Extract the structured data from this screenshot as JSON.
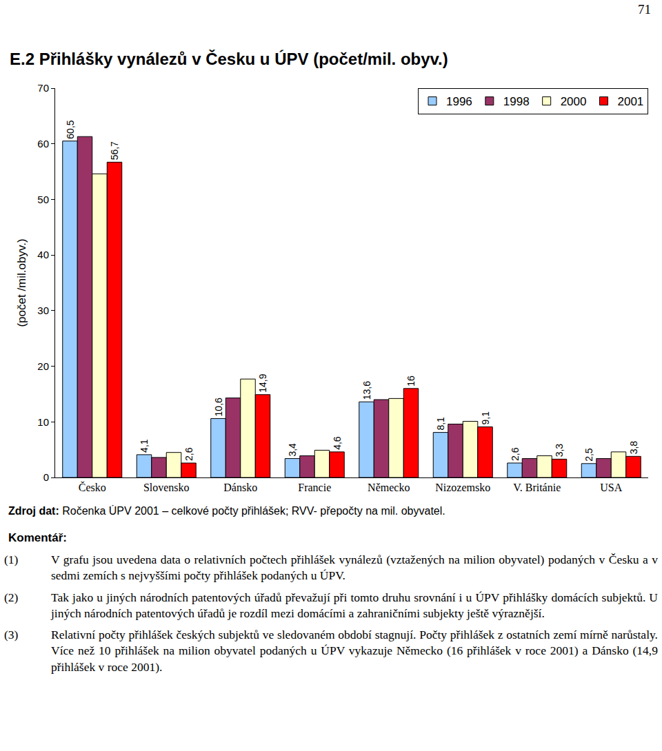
{
  "page_number": "71",
  "chart_data": {
    "type": "bar",
    "title": "E.2  Přihlášky vynálezů v Česku u ÚPV (počet/mil. obyv.)",
    "y_label": "(počet /mil.obyv.)",
    "categories": [
      "Česko",
      "Slovensko",
      "Dánsko",
      "Francie",
      "Německo",
      "Nizozemsko",
      "V. Británie",
      "USA"
    ],
    "series": [
      {
        "name": "1996",
        "color": "#99ccff",
        "values": [
          60.5,
          4.1,
          10.6,
          3.4,
          13.6,
          8.1,
          2.6,
          2.5
        ],
        "value_labels": [
          "60,5",
          "4,1",
          "10,6",
          "3,4",
          "13,6",
          "8,1",
          "2,6",
          "2,5"
        ]
      },
      {
        "name": "1998",
        "color": "#993366",
        "values": [
          61.3,
          3.6,
          14.3,
          3.9,
          14.0,
          9.6,
          3.4,
          3.4
        ]
      },
      {
        "name": "2000",
        "color": "#ffffcc",
        "values": [
          54.6,
          4.5,
          17.7,
          4.9,
          14.2,
          10.1,
          3.9,
          4.6
        ]
      },
      {
        "name": "2001",
        "color": "#ff0000",
        "values": [
          56.7,
          2.6,
          14.9,
          4.6,
          16,
          9.1,
          3.3,
          3.8
        ],
        "value_labels": [
          "56,7",
          "2,6",
          "14,9",
          "4,6",
          "16",
          "9,1",
          "3,3",
          "3,8"
        ]
      }
    ],
    "ylim": [
      0,
      70
    ],
    "yticks": [
      0,
      10,
      20,
      30,
      40,
      50,
      60,
      70
    ],
    "grid": false,
    "legend": "upper right",
    "data_labels": true
  },
  "source": {
    "label": "Zdroj dat:",
    "text": "Ročenka ÚPV 2001 – celkové počty přihlášek; RVV- přepočty na mil. obyvatel."
  },
  "comment": {
    "label": "Komentář:",
    "items": [
      {
        "number": "(1)",
        "text": "V grafu jsou uvedena data o relativních počtech přihlášek vynálezů (vztažených na milion obyvatel) podaných v Česku a v sedmi zemích s nejvyššími počty přihlášek podaných u ÚPV."
      },
      {
        "number": "(2)",
        "text": "Tak jako u jiných národních patentových úřadů převažují při tomto druhu srovnání i u ÚPV přihlášky domácích subjektů. U jiných národních patentových úřadů je rozdíl mezi domácími a zahraničními subjekty ještě výraznější."
      },
      {
        "number": "(3)",
        "text": "Relativní počty přihlášek českých subjektů ve sledovaném období stagnují. Počty přihlášek z ostatních zemí mírně narůstaly. Více než 10 přihlášek na milion obyvatel podaných u ÚPV vykazuje Německo (16 přihlášek v roce 2001) a Dánsko (14,9 přihlášek v roce 2001)."
      }
    ]
  }
}
